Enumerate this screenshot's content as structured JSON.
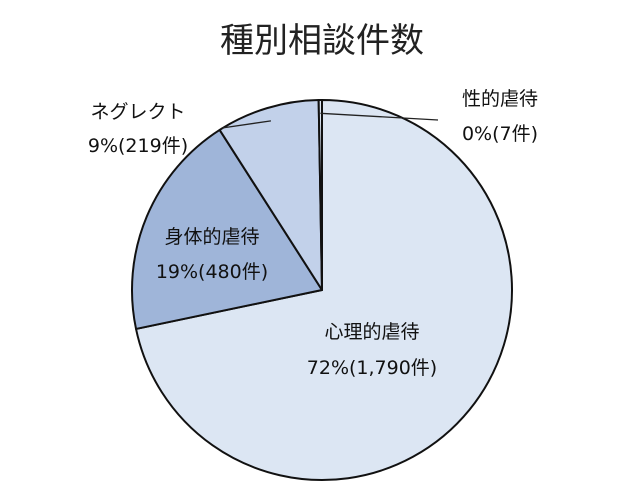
{
  "chart_data": {
    "type": "pie",
    "title": "種別相談件数",
    "slices": [
      {
        "name": "心理的虐待",
        "percent_label": "72%(1,790件)",
        "value": 1790,
        "color": "#dce6f3"
      },
      {
        "name": "身体的虐待",
        "percent_label": "19%(480件)",
        "value": 480,
        "color": "#9fb5d9"
      },
      {
        "name": "ネグレクト",
        "percent_label": "9%(219件)",
        "value": 219,
        "color": "#c2d1ea"
      },
      {
        "name": "性的虐待",
        "percent_label": "0%(7件)",
        "value": 7,
        "color": "#dce6f3"
      }
    ]
  }
}
